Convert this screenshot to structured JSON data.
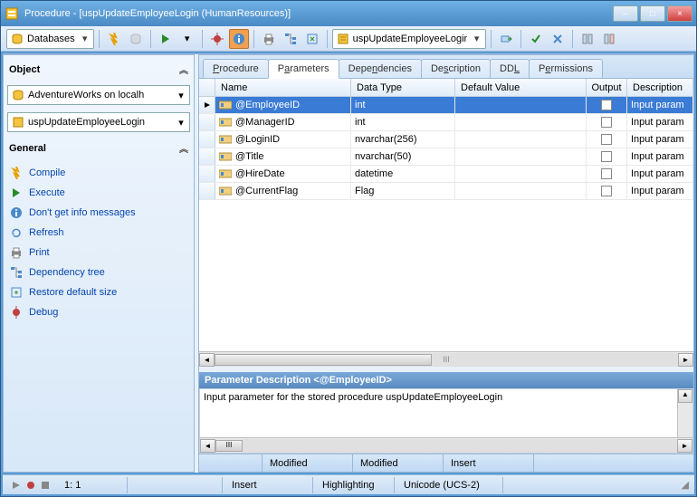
{
  "window": {
    "title": "Procedure - [uspUpdateEmployeeLogin (HumanResources)]",
    "minimize": "–",
    "maximize": "□",
    "close": "×"
  },
  "toolbar": {
    "databases_label": "Databases",
    "proc_combo": "uspUpdateEmployeeLogin"
  },
  "left": {
    "object_header": "Object",
    "combo1": "AdventureWorks on localh",
    "combo2": "uspUpdateEmployeeLogin",
    "general_header": "General",
    "actions": {
      "compile": "Compile",
      "execute": "Execute",
      "noinfo": "Don't get info messages",
      "refresh": "Refresh",
      "print": "Print",
      "deptree": "Dependency tree",
      "restore": "Restore default size",
      "debug": "Debug"
    }
  },
  "tabs": {
    "procedure": "Procedure",
    "parameters": "Parameters",
    "dependencies": "Dependencies",
    "description": "Description",
    "ddl": "DDL",
    "permissions": "Permissions"
  },
  "grid": {
    "columns": {
      "name": "Name",
      "datatype": "Data Type",
      "default": "Default Value",
      "output": "Output",
      "desc": "Description"
    },
    "rows": [
      {
        "name": "@EmployeeID",
        "datatype": "int",
        "default": "",
        "output": false,
        "desc": "Input param",
        "selected": true
      },
      {
        "name": "@ManagerID",
        "datatype": "int",
        "default": "",
        "output": false,
        "desc": "Input param",
        "selected": false
      },
      {
        "name": "@LoginID",
        "datatype": "nvarchar(256)",
        "default": "",
        "output": false,
        "desc": "Input param",
        "selected": false
      },
      {
        "name": "@Title",
        "datatype": "nvarchar(50)",
        "default": "",
        "output": false,
        "desc": "Input param",
        "selected": false
      },
      {
        "name": "@HireDate",
        "datatype": "datetime",
        "default": "",
        "output": false,
        "desc": "Input param",
        "selected": false
      },
      {
        "name": "@CurrentFlag",
        "datatype": "Flag",
        "default": "",
        "output": false,
        "desc": "Input param",
        "selected": false
      }
    ]
  },
  "param_desc": {
    "header": "Parameter Description <@EmployeeID>",
    "text": "Input parameter for the stored procedure uspUpdateEmployeeLogin"
  },
  "inner_status": {
    "c1": "",
    "c2": "Modified",
    "c3": "Modified",
    "c4": "Insert"
  },
  "bottom_status": {
    "pos": "1:   1",
    "c1": "Insert",
    "c2": "Highlighting",
    "c3": "Unicode (UCS-2)"
  },
  "colors": {
    "accent": "#3a7bd5",
    "titlebar": "#5a9bd5",
    "link": "#0645ad"
  }
}
